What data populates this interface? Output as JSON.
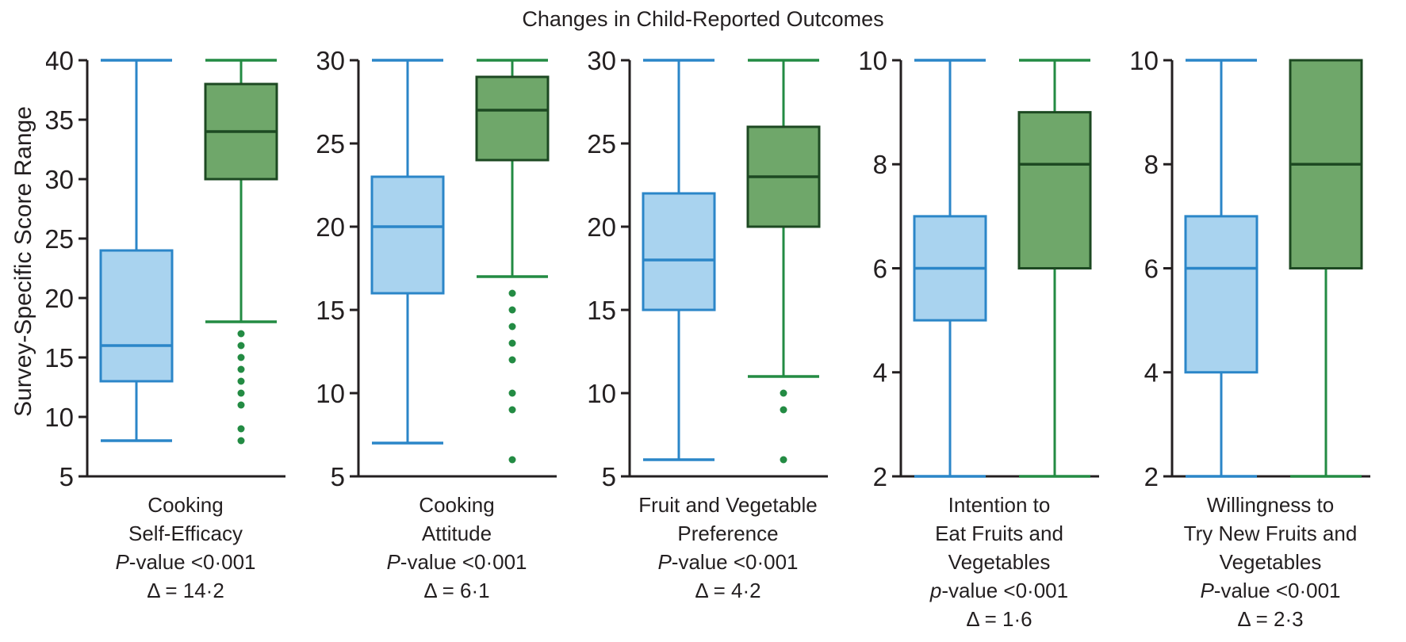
{
  "chart_data": {
    "type": "boxplot",
    "title": "Changes in Child-Reported Outcomes",
    "ylabel": "Survey-Specific Score Range",
    "legend": "none",
    "grid": false,
    "colors": {
      "blue_fill": "#A9D3EF",
      "blue_stroke": "#2B86C8",
      "green_fill": "#6FA76A",
      "green_box_stroke": "#1D4922",
      "green_whisker": "#238B43",
      "axis": "#231F20",
      "text": "#231F20"
    },
    "panels": [
      {
        "name_lines": [
          "Cooking",
          "Self-Efficacy"
        ],
        "p_value_line": "P-value <0·001",
        "delta_line": "Δ = 14·2",
        "ymin": 5,
        "ymax": 40,
        "yticks": [
          5,
          10,
          15,
          20,
          25,
          30,
          35,
          40
        ],
        "boxes": [
          {
            "group": "blue",
            "low": 8,
            "q1": 13,
            "median": 16,
            "q3": 24,
            "high": 40,
            "outliers": []
          },
          {
            "group": "green",
            "low": 18,
            "q1": 30,
            "median": 34,
            "q3": 38,
            "high": 40,
            "outliers": [
              17,
              16,
              15,
              14,
              13,
              12,
              11,
              9,
              8
            ]
          }
        ]
      },
      {
        "name_lines": [
          "Cooking",
          "Attitude"
        ],
        "p_value_line": "P-value <0·001",
        "delta_line": "Δ = 6·1",
        "ymin": 5,
        "ymax": 30,
        "yticks": [
          5,
          10,
          15,
          20,
          25,
          30
        ],
        "boxes": [
          {
            "group": "blue",
            "low": 7,
            "q1": 16,
            "median": 20,
            "q3": 23,
            "high": 30,
            "outliers": []
          },
          {
            "group": "green",
            "low": 17,
            "q1": 24,
            "median": 27,
            "q3": 29,
            "high": 30,
            "outliers": [
              16,
              15,
              14,
              13,
              12,
              10,
              9,
              6
            ]
          }
        ]
      },
      {
        "name_lines": [
          "Fruit and Vegetable",
          "Preference"
        ],
        "p_value_line": "P-value <0·001",
        "delta_line": "Δ = 4·2",
        "ymin": 5,
        "ymax": 30,
        "yticks": [
          5,
          10,
          15,
          20,
          25,
          30
        ],
        "boxes": [
          {
            "group": "blue",
            "low": 6,
            "q1": 15,
            "median": 18,
            "q3": 22,
            "high": 30,
            "outliers": []
          },
          {
            "group": "green",
            "low": 11,
            "q1": 20,
            "median": 23,
            "q3": 26,
            "high": 30,
            "outliers": [
              10,
              9,
              6
            ]
          }
        ]
      },
      {
        "name_lines": [
          "Intention to",
          "Eat Fruits and",
          "Vegetables"
        ],
        "p_value_line": "p-value <0·001",
        "delta_line": "Δ = 1·6",
        "ymin": 2,
        "ymax": 10,
        "yticks": [
          2,
          4,
          6,
          8,
          10
        ],
        "boxes": [
          {
            "group": "blue",
            "low": 2,
            "q1": 5,
            "median": 6,
            "q3": 7,
            "high": 10,
            "outliers": []
          },
          {
            "group": "green",
            "low": 2,
            "q1": 6,
            "median": 8,
            "q3": 9,
            "high": 10,
            "outliers": []
          }
        ]
      },
      {
        "name_lines": [
          "Willingness to",
          "Try New Fruits and",
          "Vegetables"
        ],
        "p_value_line": "P-value <0·001",
        "delta_line": "Δ = 2·3",
        "ymin": 2,
        "ymax": 10,
        "yticks": [
          2,
          4,
          6,
          8,
          10
        ],
        "boxes": [
          {
            "group": "blue",
            "low": 2,
            "q1": 4,
            "median": 6,
            "q3": 7,
            "high": 10,
            "outliers": []
          },
          {
            "group": "green",
            "low": 2,
            "q1": 6,
            "median": 8,
            "q3": 10,
            "high": 10,
            "outliers": []
          }
        ]
      }
    ]
  }
}
